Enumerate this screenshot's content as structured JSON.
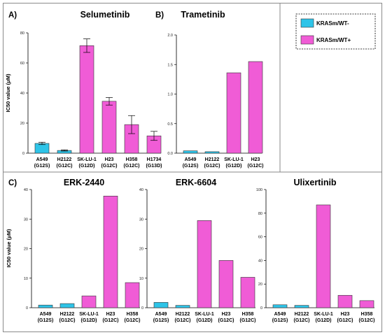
{
  "colors": {
    "wt_minus": "#2EC4E8",
    "wt_plus": "#F05CD6",
    "edge": "#333333"
  },
  "legend": {
    "items": [
      {
        "label": "KRASm/WT-",
        "color_key": "wt_minus"
      },
      {
        "label": "KRASm/WT+",
        "color_key": "wt_plus"
      }
    ]
  },
  "chart_data": [
    {
      "id": "selumetinib",
      "panel_label": "A)",
      "type": "bar",
      "title": "Selumetinib",
      "ylabel": "IC50 value (μM)",
      "ylim": [
        0,
        80
      ],
      "yticks": [
        "0",
        "20",
        "40",
        "60",
        "80"
      ],
      "categories": [
        {
          "line1": "A549",
          "line2": "(G12S)"
        },
        {
          "line1": "H2122",
          "line2": "(G12C)"
        },
        {
          "line1": "SK-LU-1",
          "line2": "(G12D)"
        },
        {
          "line1": "H23",
          "line2": "(G12C)"
        },
        {
          "line1": "H358",
          "line2": "(G12C)"
        },
        {
          "line1": "H1734",
          "line2": "(G13D)"
        }
      ],
      "values": [
        6.5,
        1.8,
        71.5,
        34.5,
        19,
        11.5
      ],
      "errors": [
        0.8,
        0.4,
        4.5,
        2.5,
        6,
        3
      ],
      "groups": [
        "wt_minus",
        "wt_minus",
        "wt_plus",
        "wt_plus",
        "wt_plus",
        "wt_plus"
      ]
    },
    {
      "id": "trametinib",
      "panel_label": "B)",
      "type": "bar",
      "title": "Trametinib",
      "ylabel": "",
      "ylim": [
        0,
        2.0
      ],
      "yticks": [
        "0.0",
        "0.5",
        "1.0",
        "1.5",
        "2.0"
      ],
      "categories": [
        {
          "line1": "A549",
          "line2": "(G12S)"
        },
        {
          "line1": "H2122",
          "line2": "(G12C)"
        },
        {
          "line1": "SK-LU-1",
          "line2": "(G12D)"
        },
        {
          "line1": "H23",
          "line2": "(G12C)"
        }
      ],
      "values": [
        0.04,
        0.025,
        1.36,
        1.55
      ],
      "groups": [
        "wt_minus",
        "wt_minus",
        "wt_plus",
        "wt_plus"
      ]
    },
    {
      "id": "erk2440",
      "panel_label": "C)",
      "type": "bar",
      "title": "ERK-2440",
      "ylabel": "IC50 value (μM)",
      "ylim": [
        0,
        40
      ],
      "yticks": [
        "0",
        "10",
        "20",
        "30",
        "40"
      ],
      "categories": [
        {
          "line1": "A549",
          "line2": "(G12S)"
        },
        {
          "line1": "H2122",
          "line2": "(G12C)"
        },
        {
          "line1": "SK-LU-1",
          "line2": "(G12D)"
        },
        {
          "line1": "H23",
          "line2": "(G12C)"
        },
        {
          "line1": "H358",
          "line2": "(G12C)"
        }
      ],
      "values": [
        0.9,
        1.4,
        4,
        37.8,
        8.5
      ],
      "groups": [
        "wt_minus",
        "wt_minus",
        "wt_plus",
        "wt_plus",
        "wt_plus"
      ]
    },
    {
      "id": "erk6604",
      "panel_label": "",
      "type": "bar",
      "title": "ERK-6604",
      "ylabel": "",
      "ylim": [
        0,
        40
      ],
      "yticks": [
        "0",
        "10",
        "20",
        "30",
        "40"
      ],
      "categories": [
        {
          "line1": "A549",
          "line2": "(G12S)"
        },
        {
          "line1": "H2122",
          "line2": "(G12C)"
        },
        {
          "line1": "SK-LU-1",
          "line2": "(G12D)"
        },
        {
          "line1": "H23",
          "line2": "(G12C)"
        },
        {
          "line1": "H358",
          "line2": "(G12C)"
        }
      ],
      "values": [
        1.8,
        0.8,
        29.5,
        16,
        10.3
      ],
      "groups": [
        "wt_minus",
        "wt_minus",
        "wt_plus",
        "wt_plus",
        "wt_plus"
      ]
    },
    {
      "id": "ulixertinib",
      "panel_label": "",
      "type": "bar",
      "title": "Ulixertinib",
      "ylabel": "",
      "ylim": [
        0,
        100
      ],
      "yticks": [
        "0",
        "20",
        "40",
        "60",
        "80",
        "100"
      ],
      "categories": [
        {
          "line1": "A549",
          "line2": "(G12S)"
        },
        {
          "line1": "H2122",
          "line2": "(G12C)"
        },
        {
          "line1": "SK-LU-1",
          "line2": "(G12D)"
        },
        {
          "line1": "H23",
          "line2": "(G12C)"
        },
        {
          "line1": "H358",
          "line2": "(G12C)"
        }
      ],
      "values": [
        2.5,
        2,
        87,
        10.5,
        6
      ],
      "groups": [
        "wt_minus",
        "wt_minus",
        "wt_plus",
        "wt_plus",
        "wt_plus"
      ]
    }
  ]
}
